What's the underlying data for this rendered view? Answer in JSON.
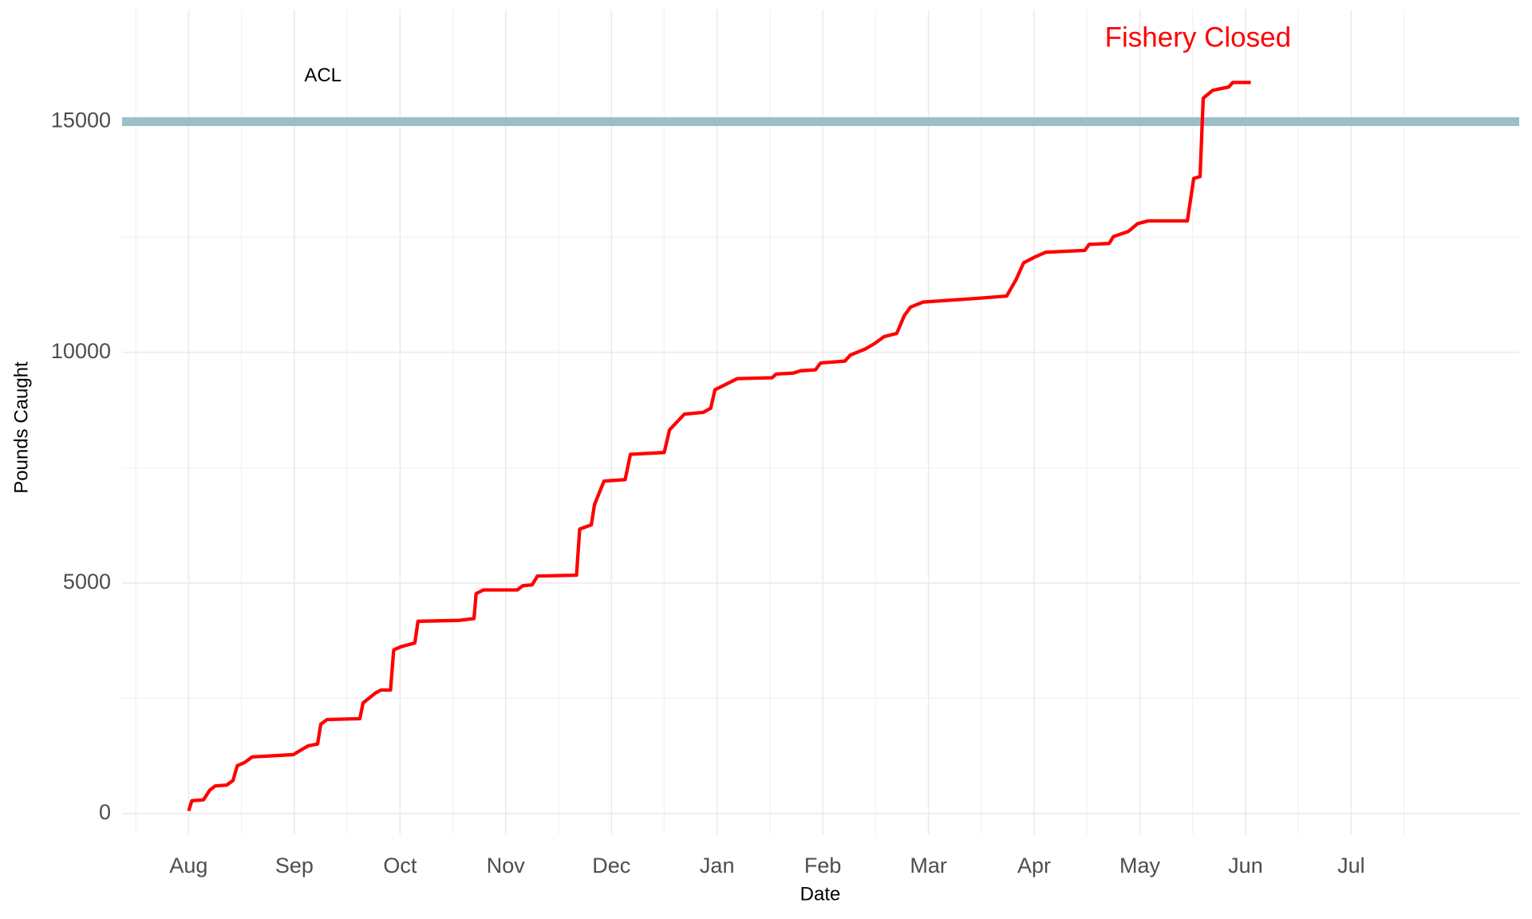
{
  "chart_data": {
    "type": "line",
    "x_label": "Date",
    "y_label": "Pounds Caught",
    "xticks": [
      {
        "value": 0,
        "label": "Aug"
      },
      {
        "value": 1,
        "label": "Sep"
      },
      {
        "value": 2,
        "label": "Oct"
      },
      {
        "value": 3,
        "label": "Nov"
      },
      {
        "value": 4,
        "label": "Dec"
      },
      {
        "value": 5,
        "label": "Jan"
      },
      {
        "value": 6,
        "label": "Feb"
      },
      {
        "value": 7,
        "label": "Mar"
      },
      {
        "value": 8,
        "label": "Apr"
      },
      {
        "value": 9,
        "label": "May"
      },
      {
        "value": 10,
        "label": "Jun"
      },
      {
        "value": 11,
        "label": "Jul"
      }
    ],
    "xlim": [
      -0.63,
      12.59
    ],
    "ylim": [
      -450,
      17430
    ],
    "yticks": [
      0,
      5000,
      10000,
      15000
    ],
    "grid": true,
    "series": [
      {
        "color": "#ff0000",
        "x": [
          0.0,
          0.03,
          0.14,
          0.2,
          0.25,
          0.36,
          0.42,
          0.46,
          0.53,
          0.6,
          0.99,
          1.13,
          1.22,
          1.25,
          1.31,
          1.62,
          1.65,
          1.77,
          1.82,
          1.91,
          1.94,
          2.01,
          2.14,
          2.17,
          2.56,
          2.7,
          2.72,
          2.79,
          3.11,
          3.16,
          3.25,
          3.3,
          3.67,
          3.7,
          3.81,
          3.84,
          3.93,
          4.13,
          4.18,
          4.5,
          4.55,
          4.69,
          4.87,
          4.94,
          4.98,
          5.19,
          5.52,
          5.56,
          5.72,
          5.79,
          5.93,
          5.98,
          6.21,
          6.26,
          6.4,
          6.49,
          6.58,
          6.7,
          6.77,
          6.83,
          6.95,
          7.46,
          7.74,
          7.83,
          7.9,
          8.01,
          8.11,
          8.48,
          8.52,
          8.71,
          8.75,
          8.89,
          8.98,
          9.08,
          9.45,
          9.51,
          9.57,
          9.6,
          9.69,
          9.84,
          9.88,
          10.05
        ],
        "values": [
          60,
          280,
          300,
          510,
          600,
          620,
          720,
          1040,
          1110,
          1230,
          1280,
          1470,
          1510,
          1940,
          2040,
          2060,
          2400,
          2620,
          2680,
          2680,
          3550,
          3620,
          3700,
          4170,
          4190,
          4230,
          4770,
          4850,
          4850,
          4940,
          4960,
          5150,
          5170,
          6170,
          6260,
          6700,
          7210,
          7240,
          7790,
          7830,
          8320,
          8660,
          8700,
          8790,
          9190,
          9430,
          9450,
          9530,
          9550,
          9600,
          9620,
          9770,
          9810,
          9940,
          10070,
          10190,
          10340,
          10410,
          10790,
          10980,
          11090,
          11170,
          11220,
          11580,
          11940,
          12070,
          12170,
          12210,
          12340,
          12360,
          12510,
          12620,
          12790,
          12850,
          12850,
          13770,
          13810,
          15510,
          15680,
          15750,
          15850,
          15850
        ]
      }
    ],
    "reference_line": {
      "value": 15000,
      "color": "#9bbecb",
      "label": "ACL",
      "label_x": 1.27,
      "label_y": 15980
    },
    "annotation": {
      "text": "Fishery Closed",
      "x": 9.55,
      "y": 16790,
      "color": "#ff0000"
    }
  }
}
